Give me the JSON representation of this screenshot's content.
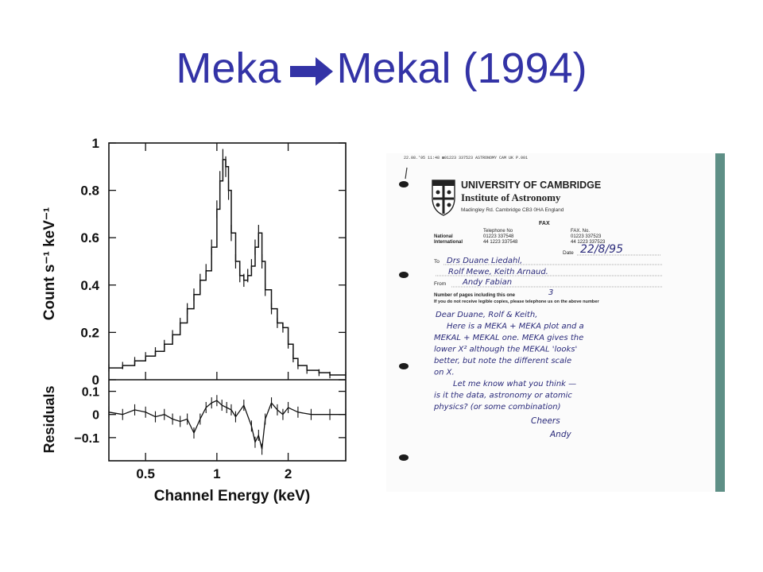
{
  "slide": {
    "title_left": "Meka",
    "title_right": "Mekal (1994)",
    "title_color": "#3333a6",
    "arrow_icon": "right-arrow-icon"
  },
  "chart_data": {
    "type": "line",
    "title": "",
    "xlabel": "Channel Energy (keV)",
    "ylabel": "Count s⁻¹ keV⁻¹",
    "residual_label": "Residuals",
    "x_scale": "log",
    "xlim": [
      0.35,
      3.5
    ],
    "ylim": [
      0,
      1
    ],
    "residual_ylim": [
      -0.2,
      0.15
    ],
    "x_ticks": [
      0.5,
      1,
      2
    ],
    "x_tick_labels": [
      "0.5",
      "1",
      "2"
    ],
    "y_ticks": [
      0,
      0.2,
      0.4,
      0.6,
      0.8,
      1
    ],
    "y_tick_labels": [
      "0",
      "0.2",
      "0.4",
      "0.6",
      "0.8",
      "1"
    ],
    "residual_ticks": [
      -0.1,
      0,
      0.1
    ],
    "residual_tick_labels": [
      "−0.1",
      "0",
      "0.1"
    ],
    "series": [
      {
        "x": [
          0.35,
          0.4,
          0.45,
          0.5,
          0.55,
          0.6,
          0.65,
          0.7,
          0.75,
          0.8,
          0.85,
          0.9,
          0.95,
          1.0,
          1.03,
          1.06,
          1.09,
          1.12,
          1.15,
          1.2,
          1.25,
          1.3,
          1.35,
          1.4,
          1.45,
          1.5,
          1.55,
          1.6,
          1.7,
          1.8,
          1.9,
          2.0,
          2.1,
          2.2,
          2.4,
          2.7,
          3.0,
          3.5
        ],
        "y": [
          0.05,
          0.06,
          0.08,
          0.1,
          0.12,
          0.15,
          0.19,
          0.24,
          0.3,
          0.36,
          0.42,
          0.46,
          0.56,
          0.72,
          0.84,
          0.93,
          0.9,
          0.8,
          0.62,
          0.5,
          0.44,
          0.42,
          0.44,
          0.48,
          0.56,
          0.62,
          0.5,
          0.38,
          0.3,
          0.24,
          0.22,
          0.15,
          0.09,
          0.06,
          0.04,
          0.03,
          0.02,
          0.02
        ]
      }
    ],
    "residuals": {
      "x": [
        0.35,
        0.4,
        0.45,
        0.5,
        0.55,
        0.6,
        0.65,
        0.7,
        0.75,
        0.8,
        0.85,
        0.9,
        0.95,
        1.0,
        1.05,
        1.1,
        1.15,
        1.2,
        1.3,
        1.4,
        1.45,
        1.5,
        1.55,
        1.6,
        1.7,
        1.8,
        1.9,
        2.0,
        2.2,
        2.5,
        3.0,
        3.5
      ],
      "y": [
        0.01,
        0.0,
        0.02,
        0.01,
        -0.01,
        0.0,
        -0.02,
        -0.03,
        -0.02,
        -0.08,
        -0.02,
        0.03,
        0.05,
        0.06,
        0.04,
        0.03,
        0.02,
        -0.01,
        0.04,
        -0.05,
        -0.12,
        -0.09,
        -0.15,
        -0.02,
        0.05,
        0.02,
        0.0,
        0.03,
        0.01,
        0.0,
        0.0,
        0.0
      ]
    }
  },
  "fax": {
    "header_line": "22.08.'95  11:48    ☎01223 337523        ASTRONOMY CAM UK        P.001",
    "institution_name": "UNIVERSITY OF CAMBRIDGE",
    "institute": "Institute of Astronomy",
    "address": "Madingley Rd. Cambridge CB3 0HA England",
    "fax_label": "FAX",
    "telephone_no_label": "Telephone No",
    "fax_no_label": "FAX. No.",
    "national_label": "National",
    "international_label": "International",
    "national_tel": "01223 337548",
    "international_tel": "44 1223 337548",
    "national_fax": "01223 337523",
    "international_fax": "44 1223 337523",
    "date_label": "Date",
    "date_value": "22/8/95",
    "to_label": "To",
    "to_line1": "Drs Duane Liedahl,",
    "to_line2": "Rolf Mewe, Keith Arnaud.",
    "from_label": "From",
    "from_value": "Andy Fabian",
    "pages_label": "Number of pages including this one",
    "pages_value": "3",
    "notice": "If you do not receive legible copies, please telephone us on the above number",
    "body_lines": [
      "Dear Duane, Rolf & Keith,",
      "Here is a MEKA + MEKA plot and a",
      "MEKAL + MEKAL one. MEKA gives the",
      "lower X² although the MEKAL 'looks'",
      "better, but note the different scale",
      "on X.",
      "Let me know what you think —",
      "is it the data, astronomy or atomic",
      "physics?  (or some combination)"
    ],
    "closing": "Cheers",
    "signature": "Andy"
  }
}
